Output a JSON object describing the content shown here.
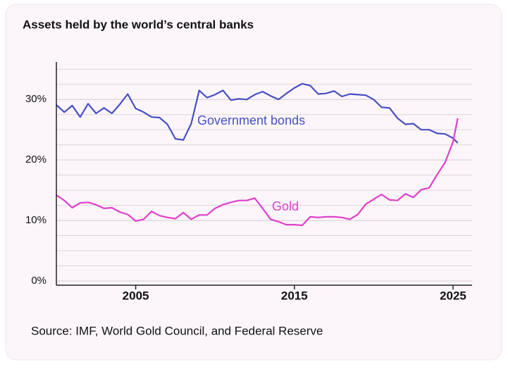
{
  "chart_data": {
    "type": "line",
    "title": "Assets held by the world’s central banks",
    "source": "Source: IMF, World Gold Council, and Federal Reserve",
    "x": [
      2000,
      2000.5,
      2001,
      2001.5,
      2002,
      2002.5,
      2003,
      2003.5,
      2004,
      2004.5,
      2005,
      2005.5,
      2006,
      2006.5,
      2007,
      2007.5,
      2008,
      2008.5,
      2009,
      2009.5,
      2010,
      2010.5,
      2011,
      2011.5,
      2012,
      2012.5,
      2013,
      2013.5,
      2014,
      2014.5,
      2015,
      2015.5,
      2016,
      2016.5,
      2017,
      2017.5,
      2018,
      2018.5,
      2019,
      2019.5,
      2020,
      2020.5,
      2021,
      2021.5,
      2022,
      2022.5,
      2023,
      2023.5,
      2024,
      2024.5,
      2025,
      2025.3
    ],
    "series": [
      {
        "name": "Government bonds",
        "color": "#4650c2",
        "values": [
          29.1,
          27.9,
          29.0,
          27.1,
          29.3,
          27.7,
          28.6,
          27.7,
          29.2,
          30.9,
          28.5,
          27.9,
          27.1,
          27.0,
          25.9,
          23.5,
          23.3,
          26.0,
          31.5,
          30.3,
          30.8,
          31.5,
          29.9,
          30.1,
          30.0,
          30.8,
          31.3,
          30.6,
          30.0,
          31.0,
          31.9,
          32.6,
          32.3,
          30.9,
          31.0,
          31.4,
          30.5,
          30.9,
          30.8,
          30.7,
          30.0,
          28.7,
          28.6,
          26.9,
          25.9,
          26.0,
          25.0,
          25.0,
          24.4,
          24.3,
          23.6,
          22.8
        ]
      },
      {
        "name": "Gold",
        "color": "#e03fcb",
        "values": [
          14.2,
          13.3,
          12.1,
          12.9,
          13.0,
          12.6,
          12.0,
          12.1,
          11.4,
          11.0,
          9.9,
          10.2,
          11.5,
          10.8,
          10.5,
          10.3,
          11.3,
          10.2,
          10.9,
          10.9,
          12.0,
          12.6,
          13.0,
          13.3,
          13.3,
          13.7,
          12.0,
          10.2,
          9.8,
          9.3,
          9.3,
          9.2,
          10.6,
          10.5,
          10.6,
          10.6,
          10.5,
          10.2,
          11.0,
          12.7,
          13.5,
          14.3,
          13.4,
          13.3,
          14.4,
          13.8,
          15.1,
          15.4,
          17.6,
          19.6,
          23.0,
          26.9
        ]
      }
    ],
    "xlim": [
      2000,
      2026.2
    ],
    "xticks": [
      2005,
      2015,
      2025
    ],
    "ylim": [
      -0.7,
      36.2
    ],
    "yticks": [
      {
        "value": 0,
        "label": "0%"
      },
      {
        "value": 10,
        "label": "10%"
      },
      {
        "value": 20,
        "label": "20%"
      },
      {
        "value": 30,
        "label": "30%"
      }
    ],
    "minor_yticks": [
      2.5,
      5,
      7.5,
      12.5,
      15,
      17.5,
      22.5,
      25,
      27.5,
      32.5,
      35
    ],
    "grid": true
  }
}
